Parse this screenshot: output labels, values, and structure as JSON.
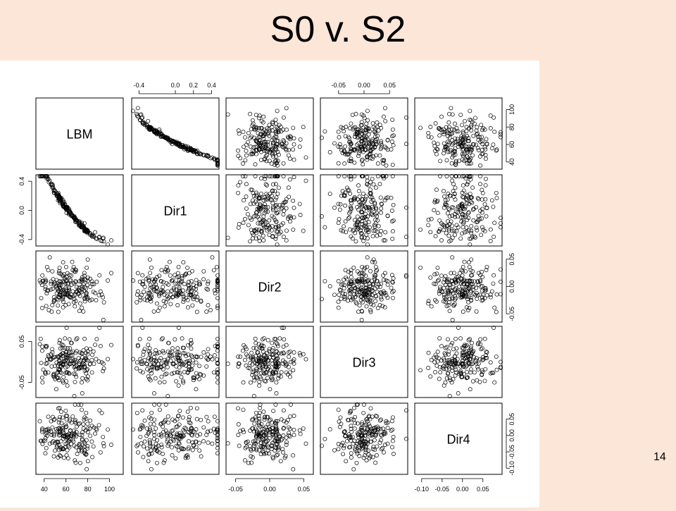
{
  "slide": {
    "title": "S0 v. S2",
    "page_number": "14"
  },
  "chart_data": {
    "type": "scatter",
    "title": "",
    "variables": [
      "LBM",
      "Dir1",
      "Dir2",
      "Dir3",
      "Dir4"
    ],
    "n_points": 200,
    "approx_means": {
      "LBM": 64,
      "Dir1": 0.0,
      "Dir2": 0.0,
      "Dir3": 0.0,
      "Dir4": 0.0
    },
    "approx_sd": {
      "LBM": 14,
      "Dir1": 0.15,
      "Dir2": 0.02,
      "Dir3": 0.03,
      "Dir4": 0.04
    },
    "correlations": {
      "LBM-Dir1": -0.98,
      "others": 0.0
    },
    "axes": {
      "LBM": {
        "range": [
          35,
          110
        ],
        "ticks": [
          40,
          60,
          80,
          100
        ]
      },
      "Dir1": {
        "range": [
          -0.45,
          0.45
        ],
        "ticks": [
          -0.4,
          0.0,
          0.2,
          0.4
        ],
        "ticks_side": [
          -0.4,
          0.0,
          0.4
        ]
      },
      "Dir2": {
        "range": [
          -0.06,
          0.06
        ],
        "ticks": [
          -0.05,
          0.0,
          0.05
        ]
      },
      "Dir3": {
        "range": [
          -0.08,
          0.08
        ],
        "ticks": [
          -0.05,
          0.0,
          0.05
        ],
        "ticks_side": [
          -0.05,
          0.05
        ]
      },
      "Dir4": {
        "range": [
          -0.11,
          0.09
        ],
        "ticks": [
          -0.1,
          -0.05,
          0.0,
          0.05
        ]
      }
    },
    "tick_labels": {
      "LBM": [
        "40",
        "60",
        "80",
        "100"
      ],
      "Dir1": [
        "-0.4",
        "0.0",
        "0.2",
        "0.4"
      ],
      "Dir1_side": [
        "0.4",
        "0.0",
        "-0.4"
      ],
      "Dir2": [
        "-0.05",
        "0.00",
        "0.05"
      ],
      "Dir3": [
        "-0.05",
        "0.00",
        "0.05"
      ],
      "Dir3_side": [
        "0.05",
        "-0.05"
      ],
      "Dir4": [
        "-0.10",
        "-0.05",
        "0.00",
        "0.05"
      ]
    },
    "grid": false,
    "legend": "none",
    "marker": "open-circle",
    "color": "#000000"
  }
}
